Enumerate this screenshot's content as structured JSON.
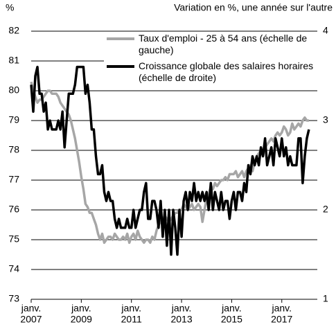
{
  "chart_data": {
    "type": "line",
    "y_unit_label": "%",
    "y2_unit_label": "Variation en %, une année sur l'autre",
    "x": [
      "2007-01",
      "2007-02",
      "2007-03",
      "2007-04",
      "2007-05",
      "2007-06",
      "2007-07",
      "2007-08",
      "2007-09",
      "2007-10",
      "2007-11",
      "2007-12",
      "2008-01",
      "2008-02",
      "2008-03",
      "2008-04",
      "2008-05",
      "2008-06",
      "2008-07",
      "2008-08",
      "2008-09",
      "2008-10",
      "2008-11",
      "2008-12",
      "2009-01",
      "2009-02",
      "2009-03",
      "2009-04",
      "2009-05",
      "2009-06",
      "2009-07",
      "2009-08",
      "2009-09",
      "2009-10",
      "2009-11",
      "2009-12",
      "2010-01",
      "2010-02",
      "2010-03",
      "2010-04",
      "2010-05",
      "2010-06",
      "2010-07",
      "2010-08",
      "2010-09",
      "2010-10",
      "2010-11",
      "2010-12",
      "2011-01",
      "2011-02",
      "2011-03",
      "2011-04",
      "2011-05",
      "2011-06",
      "2011-07",
      "2011-08",
      "2011-09",
      "2011-10",
      "2011-11",
      "2011-12",
      "2012-01",
      "2012-02",
      "2012-03",
      "2012-04",
      "2012-05",
      "2012-06",
      "2012-07",
      "2012-08",
      "2012-09",
      "2012-10",
      "2012-11",
      "2012-12",
      "2013-01",
      "2013-02",
      "2013-03",
      "2013-04",
      "2013-05",
      "2013-06",
      "2013-07",
      "2013-08",
      "2013-09",
      "2013-10",
      "2013-11",
      "2013-12",
      "2014-01",
      "2014-02",
      "2014-03",
      "2014-04",
      "2014-05",
      "2014-06",
      "2014-07",
      "2014-08",
      "2014-09",
      "2014-10",
      "2014-11",
      "2014-12",
      "2015-01",
      "2015-02",
      "2015-03",
      "2015-04",
      "2015-05",
      "2015-06",
      "2015-07",
      "2015-08",
      "2015-09",
      "2015-10",
      "2015-11",
      "2015-12",
      "2016-01",
      "2016-02",
      "2016-03",
      "2016-04",
      "2016-05",
      "2016-06",
      "2016-07",
      "2016-08",
      "2016-09",
      "2016-10",
      "2016-11",
      "2016-12",
      "2017-01",
      "2017-02",
      "2017-03",
      "2017-04",
      "2017-05",
      "2017-06",
      "2017-07",
      "2017-08",
      "2017-09",
      "2017-10",
      "2017-11",
      "2017-12",
      "2018-01",
      "2018-02"
    ],
    "xlim": [
      "2007-01",
      "2018-06"
    ],
    "xticks": [
      {
        "value": "2007-01",
        "label": [
          "janv.",
          "2007"
        ]
      },
      {
        "value": "2009-01",
        "label": [
          "janv.",
          "2009"
        ]
      },
      {
        "value": "2011-01",
        "label": [
          "janv.",
          "2011"
        ]
      },
      {
        "value": "2013-01",
        "label": [
          "janv.",
          "2013"
        ]
      },
      {
        "value": "2015-01",
        "label": [
          "janv.",
          "2015"
        ]
      },
      {
        "value": "2017-01",
        "label": [
          "janv.",
          "2017"
        ]
      }
    ],
    "ylim": [
      73,
      82
    ],
    "yticks": [
      73,
      74,
      75,
      76,
      77,
      78,
      79,
      80,
      81,
      82
    ],
    "y2lim": [
      1,
      4
    ],
    "y2ticks": [
      1,
      2,
      3,
      4
    ],
    "grid": true,
    "series": [
      {
        "name": "Taux d'emploi - 25 à 54 ans (échelle de gauche)",
        "color": "#a6a6a6",
        "values": [
          80.3,
          80.0,
          79.8,
          79.6,
          79.7,
          79.7,
          79.8,
          79.9,
          80.0,
          80.0,
          79.9,
          79.9,
          79.9,
          79.8,
          79.6,
          79.5,
          79.4,
          79.3,
          79.2,
          79.0,
          78.7,
          78.4,
          78.0,
          77.6,
          77.1,
          76.7,
          76.2,
          76.1,
          75.9,
          75.9,
          75.7,
          75.5,
          75.2,
          75.0,
          75.2,
          74.9,
          75.0,
          75.1,
          75.1,
          75.0,
          75.2,
          75.1,
          75.0,
          75.0,
          75.1,
          75.0,
          75.2,
          74.9,
          75.1,
          75.2,
          75.0,
          75.3,
          75.1,
          75.0,
          74.9,
          75.0,
          75.0,
          74.9,
          75.1,
          75.0,
          75.3,
          75.5,
          75.6,
          75.7,
          75.8,
          75.7,
          75.6,
          75.7,
          75.8,
          75.9,
          75.9,
          76.0,
          76.0,
          76.2,
          76.1,
          76.0,
          76.1,
          76.2,
          76.0,
          76.1,
          76.2,
          76.1,
          75.6,
          76.0,
          76.4,
          76.5,
          76.8,
          76.7,
          76.9,
          76.8,
          76.9,
          77.0,
          77.0,
          77.1,
          77.0,
          77.2,
          77.2,
          77.2,
          77.3,
          77.1,
          77.2,
          77.3,
          77.1,
          77.3,
          77.4,
          77.5,
          77.3,
          77.6,
          77.8,
          77.9,
          78.0,
          77.8,
          78.1,
          78.2,
          78.3,
          78.4,
          78.3,
          78.5,
          78.6,
          78.5,
          78.6,
          78.8,
          78.7,
          78.5,
          78.6,
          78.9,
          78.7,
          78.8,
          78.9,
          78.8,
          79.0,
          79.1,
          79.0,
          79.0
        ]
      },
      {
        "name": "Croissance globale des salaires horaires (échelle de droite)",
        "color": "#000000",
        "axis": "y2",
        "values": [
          3.4,
          3.1,
          3.5,
          3.6,
          3.3,
          3.3,
          3.1,
          3.2,
          2.9,
          3.0,
          2.9,
          2.9,
          2.9,
          3.0,
          2.9,
          3.1,
          2.7,
          3.0,
          3.3,
          3.3,
          3.3,
          3.4,
          3.6,
          3.6,
          3.6,
          3.6,
          3.3,
          3.4,
          3.2,
          2.9,
          2.9,
          2.6,
          2.4,
          2.4,
          2.5,
          2.2,
          2.1,
          2.2,
          2.1,
          2.1,
          1.9,
          1.8,
          1.9,
          1.8,
          1.8,
          1.8,
          1.9,
          1.8,
          1.8,
          2.0,
          1.8,
          1.9,
          2.0,
          2.0,
          2.2,
          2.3,
          1.9,
          1.9,
          2.1,
          2.1,
          2.0,
          1.8,
          2.1,
          1.7,
          2.0,
          1.6,
          2.0,
          1.5,
          2.0,
          1.8,
          1.5,
          2.0,
          1.7,
          2.1,
          2.2,
          2.0,
          2.2,
          2.1,
          2.3,
          2.1,
          2.2,
          2.1,
          2.2,
          2.1,
          2.2,
          2.0,
          2.3,
          2.0,
          2.2,
          2.1,
          2.0,
          2.2,
          2.0,
          2.1,
          2.1,
          1.9,
          2.1,
          2.2,
          2.0,
          2.2,
          2.2,
          2.1,
          2.3,
          2.2,
          2.5,
          2.4,
          2.6,
          2.5,
          2.6,
          2.5,
          2.7,
          2.6,
          2.8,
          2.5,
          2.6,
          2.7,
          2.5,
          2.8,
          2.7,
          2.6,
          2.8,
          2.6,
          2.7,
          2.5,
          2.6,
          2.5,
          2.5,
          2.5,
          2.8,
          2.8,
          2.3,
          2.6,
          2.8,
          2.9
        ]
      }
    ]
  }
}
